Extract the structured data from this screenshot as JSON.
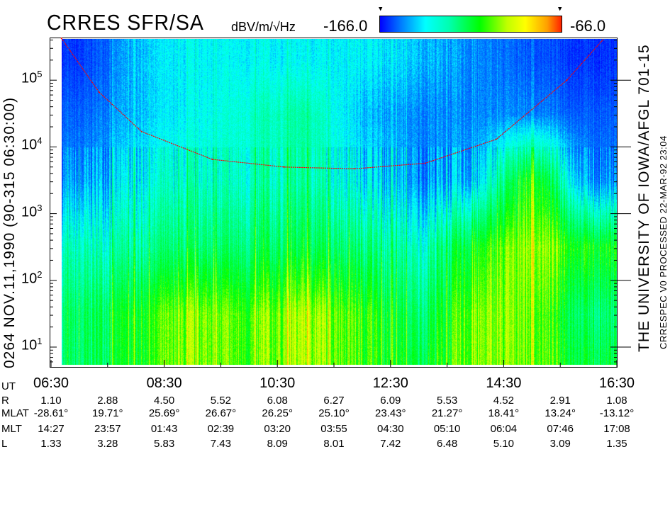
{
  "header": {
    "title": "CRRES SFR/SA",
    "units": "dBV/m/√Hz",
    "colorbar_min": "-166.0",
    "colorbar_max": "-66.0",
    "marker_glyph": "▼"
  },
  "left_label": "0264   NOV.11,1990   (90-315 06:30:00)",
  "right_label_1": "THE UNIVERSITY OF IOWA/AFGL 701-15",
  "right_label_2": "CRRESPEC V0    PROCESSED 22-MAR-92    23:04",
  "chart_data": {
    "type": "heatmap",
    "title": "CRRES SFR/SA",
    "colorbar": {
      "label": "dBV/m/√Hz",
      "range": [
        -166.0,
        -66.0
      ],
      "colors": [
        "#0000ff",
        "#00ffff",
        "#00ff00",
        "#ffff00",
        "#ff2000"
      ]
    },
    "yaxis": {
      "scale": "log",
      "range": [
        5.4,
        440000
      ],
      "tick_labels": [
        {
          "base": "10",
          "exp": "1",
          "value": 10
        },
        {
          "base": "10",
          "exp": "2",
          "value": 100
        },
        {
          "base": "10",
          "exp": "3",
          "value": 1000
        },
        {
          "base": "10",
          "exp": "4",
          "value": 10000
        },
        {
          "base": "10",
          "exp": "5",
          "value": 100000
        }
      ]
    },
    "xaxis": {
      "label": "UT",
      "range": [
        "06:30",
        "16:30"
      ],
      "tick_labels": [
        "06:30",
        "08:30",
        "10:30",
        "12:30",
        "14:30",
        "16:30"
      ],
      "minor_tick_interval_hours": 1
    },
    "approx_grid": {
      "times": [
        "07:00",
        "08:00",
        "09:00",
        "10:00",
        "11:00",
        "12:00",
        "13:00",
        "14:00",
        "15:00",
        "16:00"
      ],
      "freq_bands": [
        "5-10",
        "10-100",
        "100-1000",
        "1000-10000",
        "10000-100000",
        "100000-440000"
      ],
      "values_db": [
        [
          -125,
          -125,
          -135,
          -150,
          -155,
          -160
        ],
        [
          -115,
          -115,
          -130,
          -140,
          -145,
          -145
        ],
        [
          -105,
          -105,
          -125,
          -135,
          -140,
          -140
        ],
        [
          -110,
          -110,
          -125,
          -135,
          -135,
          -140
        ],
        [
          -100,
          -100,
          -120,
          -130,
          -130,
          -140
        ],
        [
          -110,
          -110,
          -125,
          -140,
          -145,
          -140
        ],
        [
          -120,
          -125,
          -135,
          -150,
          -150,
          -145
        ],
        [
          -105,
          -105,
          -115,
          -145,
          -150,
          -150
        ],
        [
          -105,
          -105,
          -100,
          -110,
          -150,
          -155
        ],
        [
          -120,
          -125,
          -115,
          -150,
          -155,
          -160
        ]
      ]
    },
    "overlay_curve": {
      "color": "#ff0000",
      "times": [
        "06:41",
        "07:21",
        "08:06",
        "09:21",
        "10:37",
        "11:52",
        "13:07",
        "14:22",
        "15:37",
        "16:15"
      ],
      "freq": [
        440000,
        66000,
        17000,
        6500,
        5000,
        4700,
        5700,
        13000,
        100000,
        400000
      ]
    }
  },
  "table": {
    "rows": [
      {
        "label": "UT",
        "values": [
          "06:30",
          "",
          "08:30",
          "",
          "10:30",
          "",
          "12:30",
          "",
          "14:30",
          "",
          "16:30"
        ]
      },
      {
        "label": "R",
        "values": [
          "1.10",
          "2.88",
          "4.50",
          "5.52",
          "6.08",
          "6.27",
          "6.09",
          "5.53",
          "4.52",
          "2.91",
          "1.08"
        ]
      },
      {
        "label": "MLAT",
        "values": [
          "-28.61°",
          "19.71°",
          "25.69°",
          "26.67°",
          "26.25°",
          "25.10°",
          "23.43°",
          "21.27°",
          "18.41°",
          "13.24°",
          "-13.12°"
        ]
      },
      {
        "label": "MLT",
        "values": [
          "14:27",
          "23:57",
          "01:43",
          "02:39",
          "03:20",
          "03:55",
          "04:30",
          "05:10",
          "06:04",
          "07:46",
          "17:08"
        ]
      },
      {
        "label": "L",
        "values": [
          "1.33",
          "3.28",
          "5.83",
          "7.43",
          "8.09",
          "8.01",
          "7.42",
          "6.48",
          "5.10",
          "3.09",
          "1.35"
        ]
      }
    ]
  }
}
